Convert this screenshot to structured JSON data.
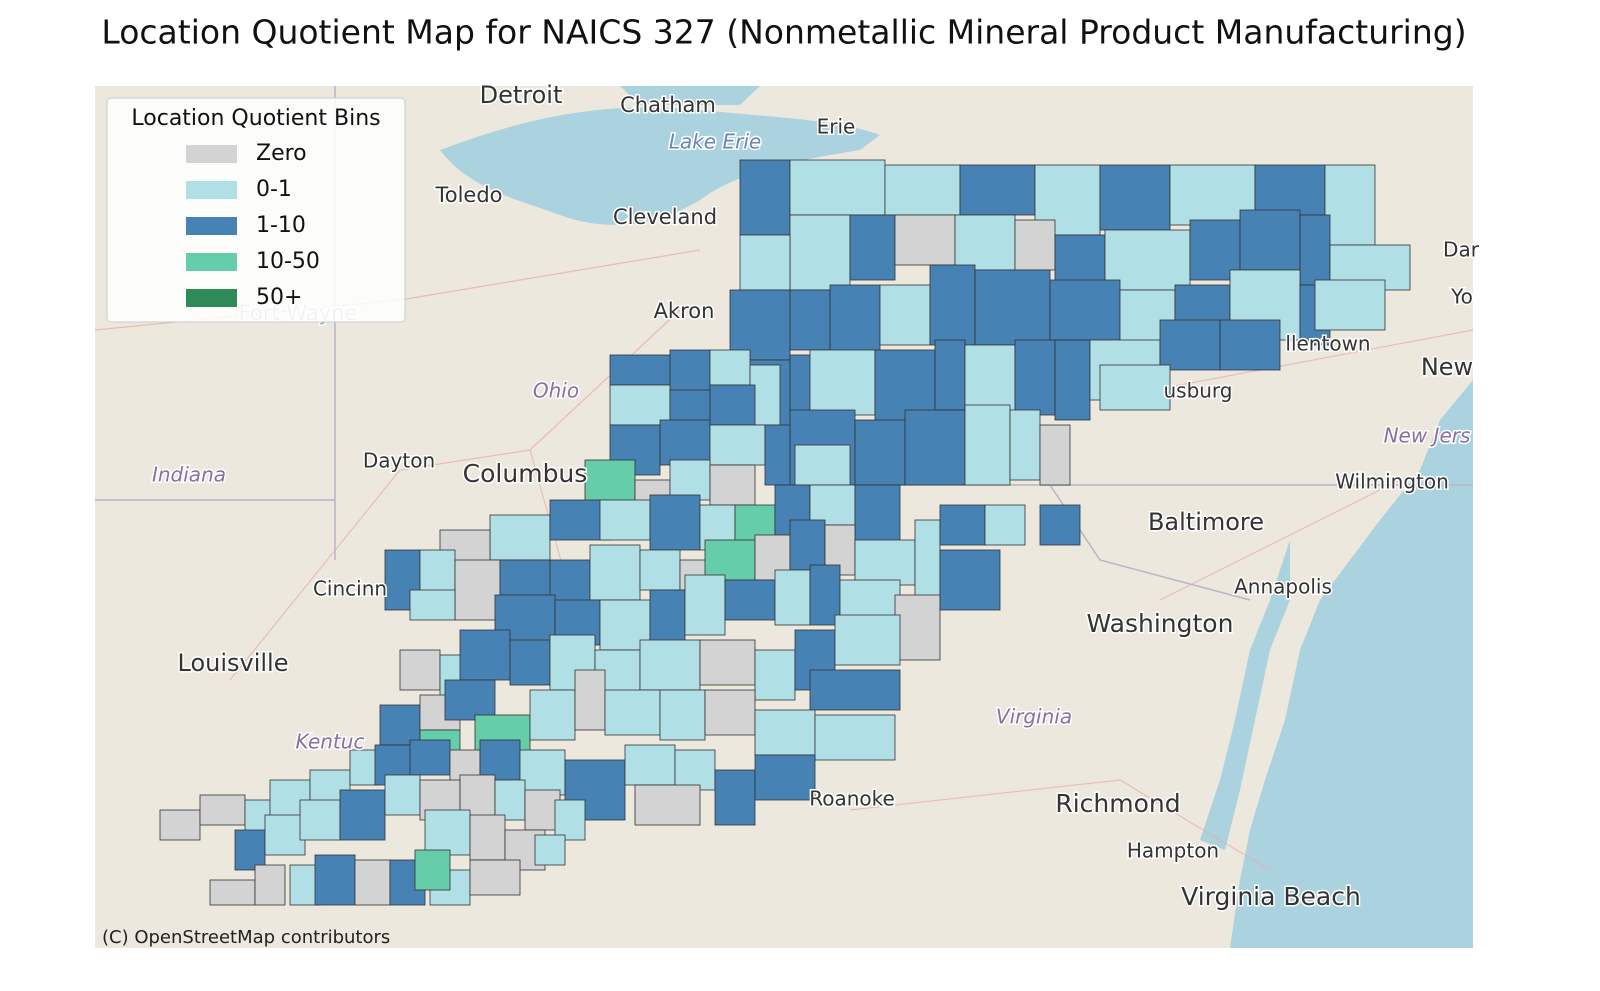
{
  "title": "Location Quotient Map for NAICS 327 (Nonmetallic Mineral Product Manufacturing)",
  "legend": {
    "title": "Location Quotient Bins",
    "items": [
      {
        "label": "Zero",
        "color": "#d3d3d3"
      },
      {
        "label": "0-1",
        "color": "#b0e0e6"
      },
      {
        "label": "1-10",
        "color": "#4682b4"
      },
      {
        "label": "10-50",
        "color": "#66cdaa"
      },
      {
        "label": "50+",
        "color": "#2e8b57"
      }
    ]
  },
  "map": {
    "labels": [
      "Detroit",
      "Chatham",
      "Lake Erie",
      "Erie",
      "Toledo",
      "Cleveland",
      "Akron",
      "Fort Wayne",
      "Ohio",
      "Dayton",
      "Columbus",
      "Indiana",
      "Cincinn",
      "Louisville",
      "Kentuc",
      "Roanoke",
      "Richmond",
      "Hampton",
      "Virginia Beach",
      "Virginia",
      "Washington",
      "Baltimore",
      "Annapolis",
      "Wilmington",
      "New Jers",
      "New",
      "llentown",
      "usburg",
      "Dar",
      "Yo"
    ],
    "attribution": "(C) OpenStreetMap contributors"
  }
}
